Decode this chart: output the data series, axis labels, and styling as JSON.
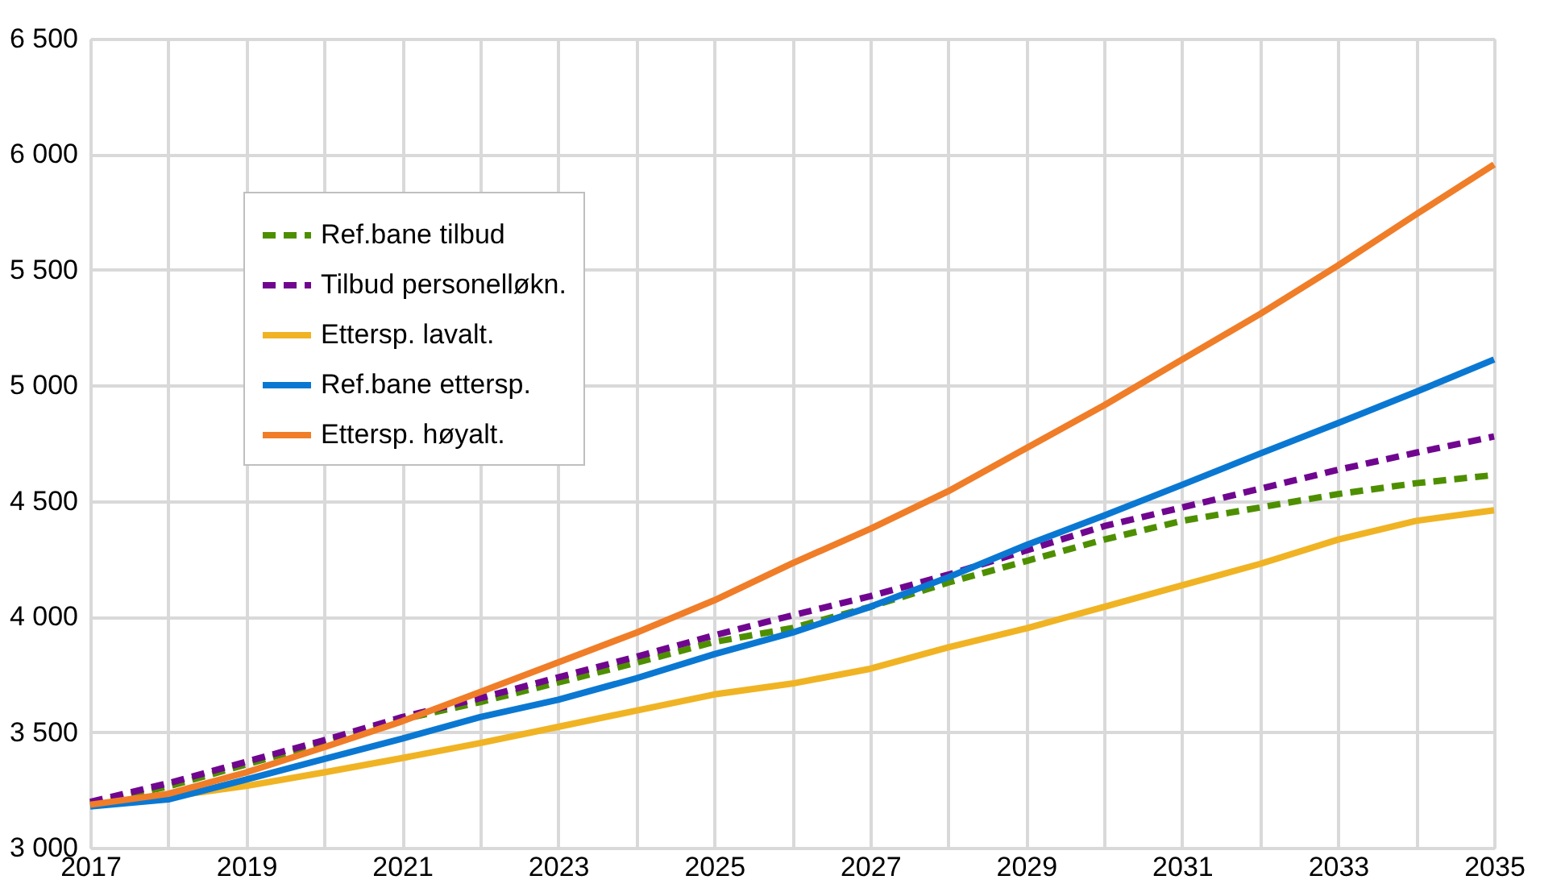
{
  "chart_data": {
    "type": "line",
    "x": [
      2017,
      2018,
      2019,
      2020,
      2021,
      2022,
      2023,
      2024,
      2025,
      2026,
      2027,
      2028,
      2029,
      2030,
      2031,
      2032,
      2033,
      2034,
      2035
    ],
    "series": [
      {
        "name": "Ref.bane tilbud",
        "color": "#4e8f00",
        "line_style": "dashed",
        "values": [
          3190,
          3265,
          3360,
          3455,
          3555,
          3630,
          3715,
          3800,
          3890,
          3950,
          4042,
          4147,
          4240,
          4333,
          4414,
          4472,
          4530,
          4577,
          4612
        ]
      },
      {
        "name": "Tilbud personelløkn.",
        "color": "#70068f",
        "line_style": "dashed",
        "values": [
          3198,
          3279,
          3372,
          3465,
          3565,
          3647,
          3737,
          3826,
          3919,
          4005,
          4088,
          4181,
          4286,
          4391,
          4472,
          4553,
          4635,
          4709,
          4779
        ]
      },
      {
        "name": "Ettersp. lavalt.",
        "color": "#f0b323",
        "line_style": "solid",
        "values": [
          3180,
          3221,
          3267,
          3326,
          3388,
          3453,
          3523,
          3593,
          3663,
          3710,
          3774,
          3867,
          3949,
          4042,
          4135,
          4228,
          4333,
          4414,
          4460
        ]
      },
      {
        "name": "Ref.bane ettersp.",
        "color": "#0a78d2",
        "line_style": "solid",
        "values": [
          3179,
          3209,
          3295,
          3384,
          3472,
          3565,
          3640,
          3733,
          3837,
          3930,
          4042,
          4170,
          4309,
          4437,
          4570,
          4705,
          4837,
          4972,
          5112
        ]
      },
      {
        "name": "Ettersp. høyalt.",
        "color": "#f07d28",
        "line_style": "solid",
        "values": [
          3186,
          3233,
          3326,
          3435,
          3547,
          3674,
          3802,
          3930,
          4070,
          4230,
          4379,
          4542,
          4728,
          4914,
          5112,
          5309,
          5519,
          5740,
          5956
        ]
      }
    ],
    "xlim": [
      2017,
      2035
    ],
    "xticks": [
      2017,
      {
        "value": 2018,
        "label": null
      },
      2019,
      {
        "value": 2020,
        "label": null
      },
      2021,
      {
        "value": 2022,
        "label": null
      },
      2023,
      {
        "value": 2024,
        "label": null
      },
      2025,
      {
        "value": 2026,
        "label": null
      },
      2027,
      {
        "value": 2028,
        "label": null
      },
      2029,
      {
        "value": 2030,
        "label": null
      },
      2031,
      {
        "value": 2032,
        "label": null
      },
      2033,
      {
        "value": 2034,
        "label": null
      },
      2035
    ],
    "ylim": [
      3000,
      6500
    ],
    "yticks": [
      {
        "value": 3000,
        "label": "3 000"
      },
      {
        "value": 3500,
        "label": "3 500"
      },
      {
        "value": 4000,
        "label": "4 000"
      },
      {
        "value": 4500,
        "label": "4 500"
      },
      {
        "value": 5000,
        "label": "5 000"
      },
      {
        "value": 5500,
        "label": "5 500"
      },
      {
        "value": 6000,
        "label": "6 000"
      },
      {
        "value": 6500,
        "label": "6 500"
      }
    ],
    "grid": true,
    "legend": "top left",
    "marker": "none"
  }
}
